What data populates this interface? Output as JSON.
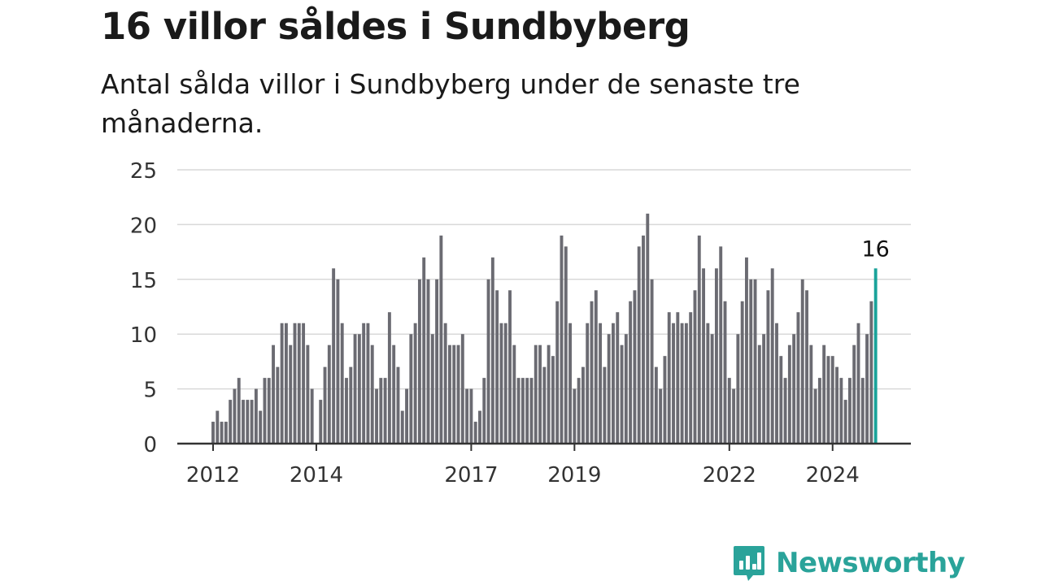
{
  "title": "16 villor såldes i Sundbyberg",
  "subtitle": "Antal sålda villor i Sundbyberg under de senaste tre månaderna.",
  "brand": {
    "name": "Newsworthy",
    "icon": "newsworthy-logo-icon",
    "color": "#2aa39a"
  },
  "colors": {
    "bar": "#6b6b72",
    "highlight": "#1aa39a",
    "grid": "#d9d9d9",
    "axis": "#333333"
  },
  "chart_data": {
    "type": "bar",
    "ylim": [
      0,
      25
    ],
    "yticks": [
      0,
      5,
      10,
      15,
      20,
      25
    ],
    "xtick_labels": [
      {
        "label": "2012",
        "index": 0
      },
      {
        "label": "2014",
        "index": 24
      },
      {
        "label": "2017",
        "index": 60
      },
      {
        "label": "2019",
        "index": 84
      },
      {
        "label": "2022",
        "index": 120
      },
      {
        "label": "2024",
        "index": 144
      }
    ],
    "highlight": {
      "index": 154,
      "value": 16,
      "label": "16"
    },
    "values": [
      2,
      3,
      2,
      2,
      4,
      5,
      6,
      4,
      4,
      4,
      5,
      3,
      6,
      6,
      9,
      7,
      11,
      11,
      9,
      11,
      11,
      11,
      9,
      5,
      null,
      4,
      7,
      9,
      16,
      15,
      11,
      6,
      7,
      10,
      10,
      11,
      11,
      9,
      5,
      6,
      6,
      12,
      9,
      7,
      3,
      5,
      10,
      11,
      15,
      17,
      15,
      10,
      15,
      19,
      11,
      9,
      9,
      9,
      10,
      5,
      5,
      2,
      3,
      6,
      15,
      17,
      14,
      11,
      11,
      14,
      9,
      6,
      6,
      6,
      6,
      9,
      9,
      7,
      9,
      8,
      13,
      19,
      18,
      11,
      5,
      6,
      7,
      11,
      13,
      14,
      11,
      7,
      10,
      11,
      12,
      9,
      10,
      13,
      14,
      18,
      19,
      21,
      15,
      7,
      5,
      8,
      12,
      11,
      12,
      11,
      11,
      12,
      14,
      19,
      16,
      11,
      10,
      16,
      18,
      13,
      6,
      5,
      10,
      13,
      17,
      15,
      15,
      9,
      10,
      14,
      16,
      11,
      8,
      6,
      9,
      10,
      12,
      15,
      14,
      9,
      5,
      6,
      9,
      8,
      8,
      7,
      6,
      4,
      6,
      9,
      11,
      6,
      10,
      13,
      16
    ]
  }
}
